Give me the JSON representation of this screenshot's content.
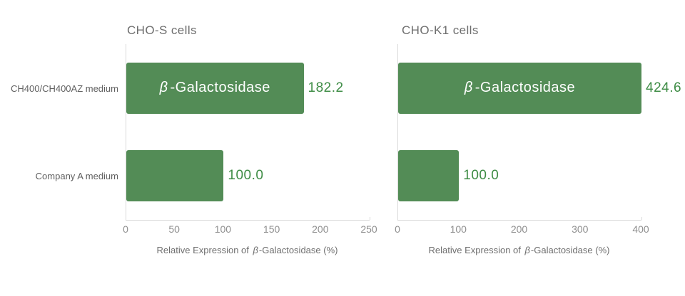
{
  "figure": {
    "background": "#ffffff"
  },
  "colors": {
    "bar": "#538c56",
    "value-text": "#3e8c45",
    "bar-inner-text": "#ffffff",
    "axis-line": "#d9d9d9",
    "title-text": "#6e6e6e",
    "category-text": "#606060",
    "tick-text": "#8f8f8f",
    "axis-label-text": "#6e6e6e"
  },
  "chart_data": [
    {
      "type": "bar",
      "orientation": "horizontal",
      "title": "CHO-S cells",
      "categories": [
        "CH400/CH400AZ medium",
        "Company A medium"
      ],
      "values": [
        182.2,
        100.0
      ],
      "value_labels": [
        "182.2",
        "100.0"
      ],
      "bar_inner_labels": [
        "β-Galactosidase",
        ""
      ],
      "bar_label_parts": {
        "beta": "β",
        "rest": "-Galactosidase"
      },
      "xlabel": "Relative Expression of β-Galactosidase (%)",
      "xlabel_parts": {
        "pre": "Relative Expression of ",
        "beta": "β",
        "post": "-Galactosidase (%)"
      },
      "xlim": [
        0,
        250
      ],
      "xticks": [
        0,
        50,
        100,
        150,
        200,
        250
      ],
      "grid": false,
      "legend": null,
      "bar_color": "#538c56"
    },
    {
      "type": "bar",
      "orientation": "horizontal",
      "title": "CHO-K1 cells",
      "categories": [
        "CH400/CH400AZ medium",
        "Company A medium"
      ],
      "values": [
        424.6,
        100.0
      ],
      "value_labels": [
        "424.6",
        "100.0"
      ],
      "bar_inner_labels": [
        "β-Galactosidase",
        ""
      ],
      "bar_label_parts": {
        "beta": "β",
        "rest": "-Galactosidase"
      },
      "xlabel": "Relative Expression of β-Galactosidase (%)",
      "xlabel_parts": {
        "pre": "Relative Expression of ",
        "beta": "β",
        "post": "-Galactosidase (%)"
      },
      "xlim": [
        0,
        400
      ],
      "xticks": [
        0,
        100,
        200,
        300,
        400
      ],
      "grid": false,
      "legend": null,
      "bar_color": "#538c56"
    }
  ]
}
